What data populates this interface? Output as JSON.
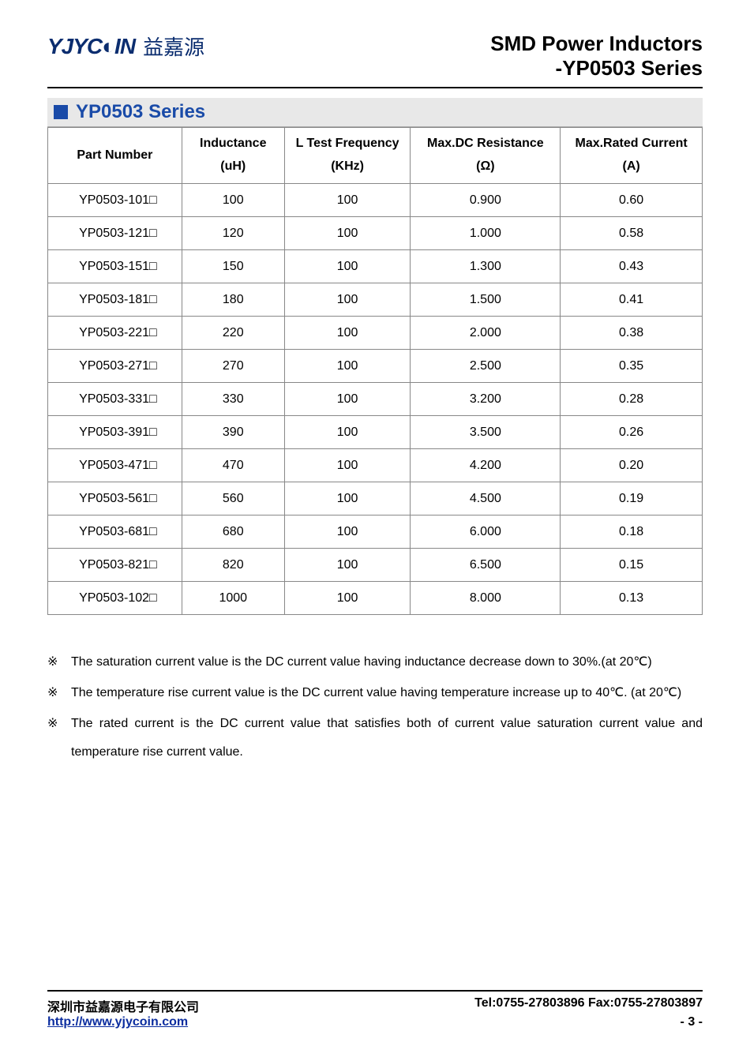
{
  "header": {
    "logo_en": "YJYC◐IN",
    "logo_cn": "益嘉源",
    "title_line1": "SMD Power Inductors",
    "title_line2": "-YP0503 Series"
  },
  "section": {
    "title": "YP0503 Series"
  },
  "table": {
    "columns": [
      {
        "line1": "Part Number",
        "line2": ""
      },
      {
        "line1": "Inductance",
        "line2": "(uH)"
      },
      {
        "line1": "L Test Frequency",
        "line2": "(KHz)"
      },
      {
        "line1": "Max.DC Resistance",
        "line2": "(Ω)"
      },
      {
        "line1": "Max.Rated Current",
        "line2": "(A)"
      }
    ],
    "rows": [
      [
        "YP0503-101□",
        "100",
        "100",
        "0.900",
        "0.60"
      ],
      [
        "YP0503-121□",
        "120",
        "100",
        "1.000",
        "0.58"
      ],
      [
        "YP0503-151□",
        "150",
        "100",
        "1.300",
        "0.43"
      ],
      [
        "YP0503-181□",
        "180",
        "100",
        "1.500",
        "0.41"
      ],
      [
        "YP0503-221□",
        "220",
        "100",
        "2.000",
        "0.38"
      ],
      [
        "YP0503-271□",
        "270",
        "100",
        "2.500",
        "0.35"
      ],
      [
        "YP0503-331□",
        "330",
        "100",
        "3.200",
        "0.28"
      ],
      [
        "YP0503-391□",
        "390",
        "100",
        "3.500",
        "0.26"
      ],
      [
        "YP0503-471□",
        "470",
        "100",
        "4.200",
        "0.20"
      ],
      [
        "YP0503-561□",
        "560",
        "100",
        "4.500",
        "0.19"
      ],
      [
        "YP0503-681□",
        "680",
        "100",
        "6.000",
        "0.18"
      ],
      [
        "YP0503-821□",
        "820",
        "100",
        "6.500",
        "0.15"
      ],
      [
        "YP0503-102□",
        "1000",
        "100",
        "8.000",
        "0.13"
      ]
    ]
  },
  "notes": {
    "mark": "※",
    "items": [
      "The saturation current value is the DC current value having inductance decrease down to 30%.(at 20℃)",
      "The temperature rise current value is the DC current value having temperature increase up to 40℃. (at 20℃)",
      "The rated current is the DC current value that satisfies both of current value saturation current value and temperature rise current value."
    ]
  },
  "footer": {
    "company": "深圳市益嘉源电子有限公司",
    "tel_fax": "Tel:0755-27803896   Fax:0755-27803897",
    "url": "http://www.yjycoin.com",
    "page": "- 3 -"
  },
  "colors": {
    "brand_blue": "#0b2d6f",
    "accent_blue": "#1a4ba8",
    "section_bg": "#e8e8e8",
    "link_blue": "#0b2d9f"
  }
}
